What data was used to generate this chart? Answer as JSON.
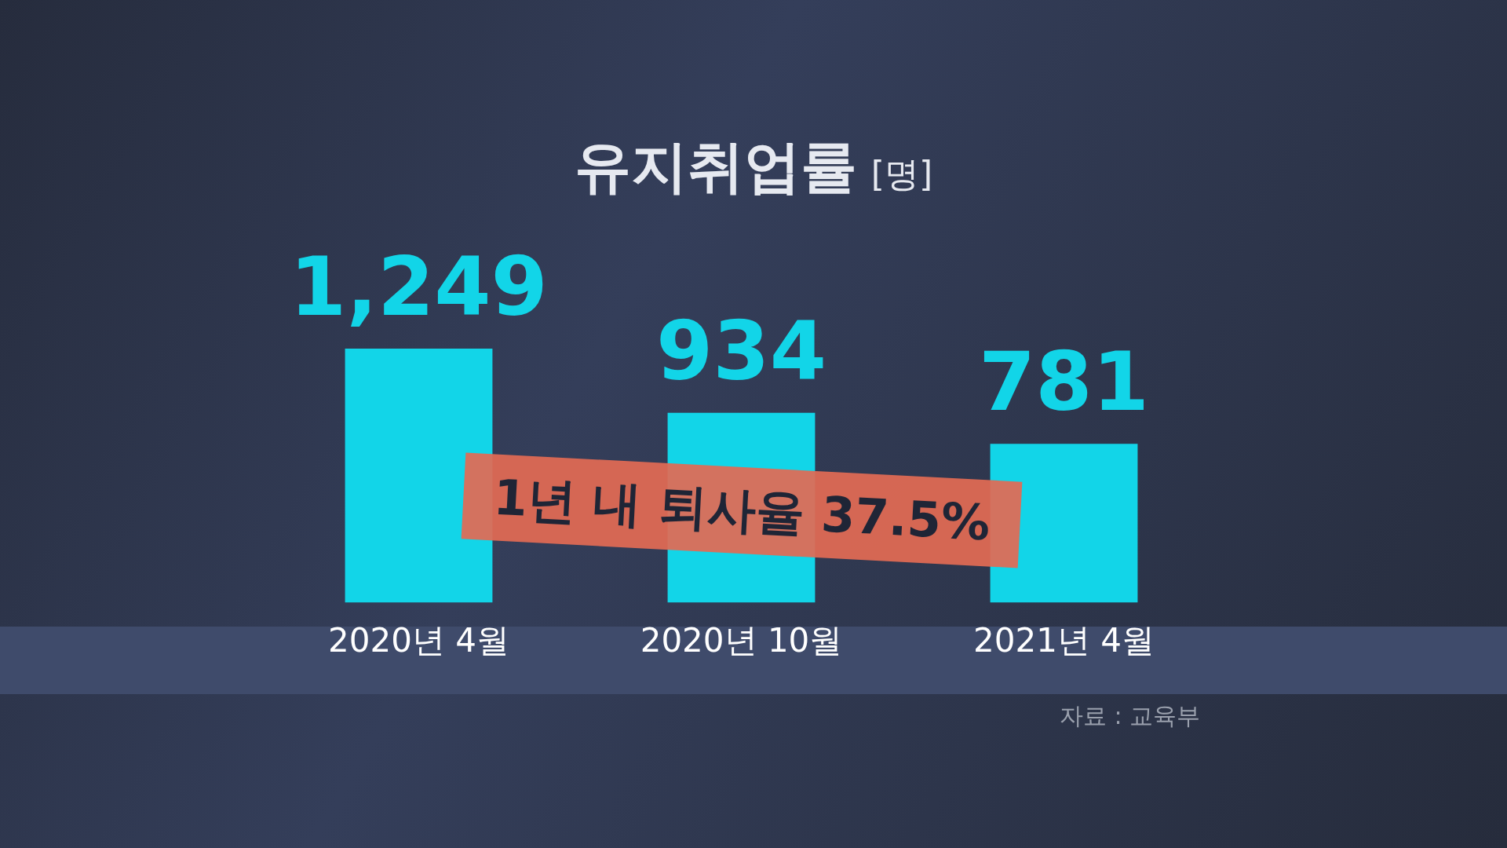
{
  "chart_data": {
    "type": "bar",
    "title": "유지취업률",
    "subtitle": "[명]",
    "categories": [
      "2020년 4월",
      "2020년 10월",
      "2021년 4월"
    ],
    "values": [
      1249,
      934,
      781
    ],
    "value_labels": [
      "1,249",
      "934",
      "781"
    ],
    "color": "#12d5e8",
    "annotations": [
      "1년 내 퇴사율 37.5%",
      "자료 : 교육부"
    ],
    "grid": false,
    "legend": false
  }
}
